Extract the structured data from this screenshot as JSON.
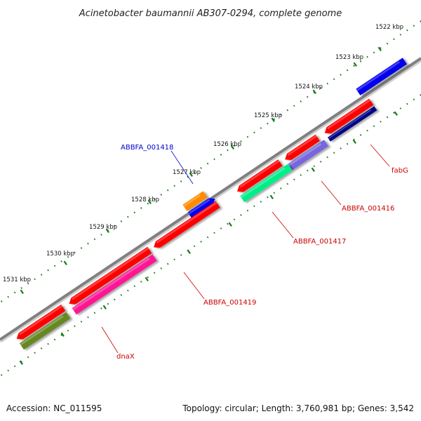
{
  "title": "Acinetobacter baumannii AB307-0294, complete genome",
  "footer": {
    "accession": "Accession: NC_011595",
    "info": "Topology: circular; Length: 3,760,981 bp; Genes: 3,542"
  },
  "ticks": [
    "1522 kbp",
    "1523 kbp",
    "1524 kbp",
    "1525 kbp",
    "1526 kbp",
    "1527 kbp",
    "1528 kbp",
    "1529 kbp",
    "1530 kbp",
    "1531 kbp"
  ],
  "gene_labels": [
    "ABBFA_001418",
    "fabG",
    "ABBFA_001416",
    "ABBFA_001417",
    "ABBFA_001419",
    "dnaX"
  ],
  "colors": {
    "backbone": "#808080",
    "tick": "#1a7a1a",
    "label_blue": "#0000cc",
    "label_red": "#cc0000",
    "red": "#ff0000",
    "blue": "#0000ee",
    "orange": "#ff8c00",
    "teal": "#00ee88",
    "lavender": "#7766dd",
    "navy": "#000088",
    "pink": "#ff1493",
    "olive": "#668822"
  }
}
